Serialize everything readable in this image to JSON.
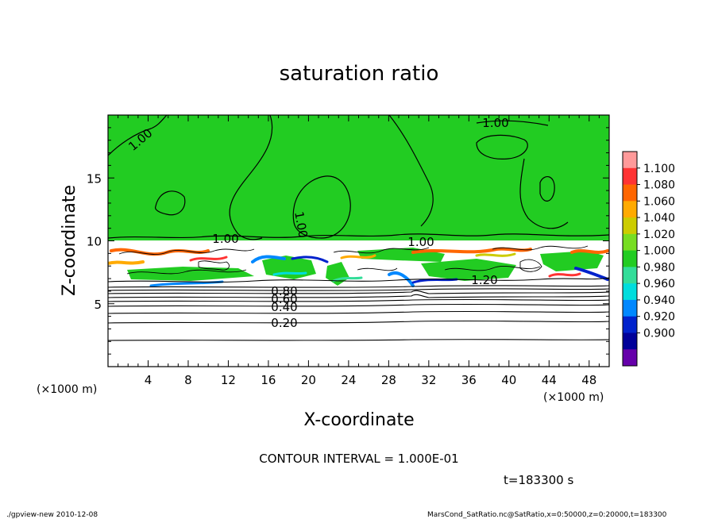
{
  "chart_data": {
    "type": "heatmap",
    "title": "saturation ratio",
    "xlabel": "X-coordinate",
    "ylabel": "Z-coordinate",
    "x_unit_left": "(×1000 m)",
    "x_unit_right": "(×1000 m)",
    "xlim": [
      0,
      50
    ],
    "ylim": [
      0,
      20
    ],
    "x_ticks": [
      "4",
      "8",
      "12",
      "16",
      "20",
      "24",
      "28",
      "32",
      "36",
      "40",
      "44",
      "48"
    ],
    "y_ticks": [
      "5",
      "10",
      "15"
    ],
    "colorbar": {
      "levels": [
        "1.100",
        "1.080",
        "1.060",
        "1.040",
        "1.020",
        "1.000",
        "0.980",
        "0.960",
        "0.940",
        "0.920",
        "0.900"
      ],
      "colors": [
        "#ff9a9a",
        "#ff3333",
        "#ff6600",
        "#ffaa00",
        "#cccc00",
        "#77dd22",
        "#22cc22",
        "#33dd99",
        "#00dddd",
        "#0088ff",
        "#0022cc",
        "#000099",
        "#6600aa"
      ]
    },
    "contour_labels": [
      "1.00",
      "1.00",
      "1.00",
      "1.00",
      "1.00",
      "1.20",
      "0.80",
      "0.60",
      "0.40",
      "0.20"
    ],
    "contour_interval_text": "CONTOUR INTERVAL = 1.000E-01",
    "time_text": "t=183300 s"
  },
  "footer": {
    "left": "./gpview-new  2010-12-08",
    "right": "MarsCond_SatRatio.nc@SatRatio,x=0:50000,z=0:20000,t=183300"
  }
}
